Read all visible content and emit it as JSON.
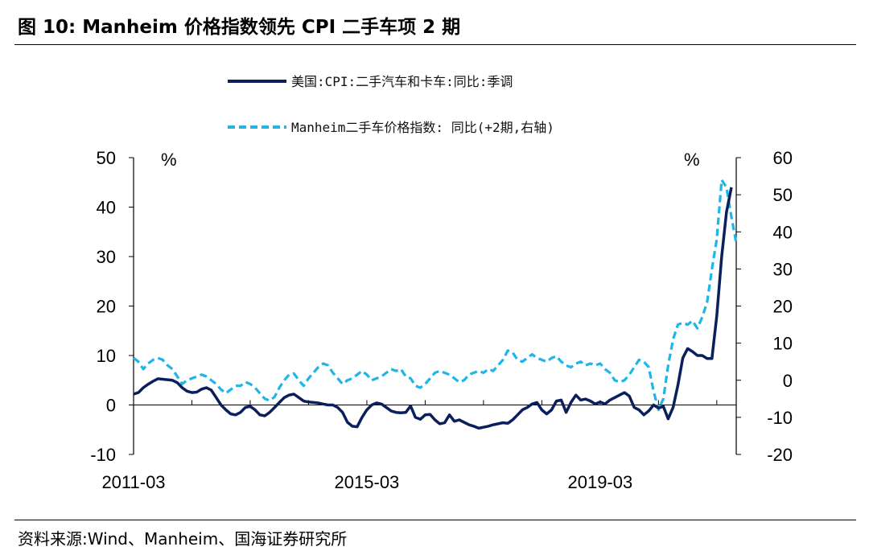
{
  "header": {
    "title": "图 10:  Manheim 价格指数领先 CPI 二手车项 2 期"
  },
  "footer": {
    "source": "资料来源:Wind、Manheim、国海证券研究所"
  },
  "chart_data": {
    "type": "line",
    "legend": [
      "美国:CPI:二手汽车和卡车:同比:季调",
      "Manheim二手车价格指数: 同比(+2期,右轴)"
    ],
    "left_unit": "%",
    "right_unit": "%",
    "left_axis": {
      "min": -10,
      "max": 50,
      "ticks": [
        -10,
        0,
        10,
        20,
        30,
        40,
        50
      ]
    },
    "right_axis": {
      "min": -20,
      "max": 60,
      "ticks": [
        -20,
        -10,
        0,
        10,
        20,
        30,
        40,
        50,
        60
      ]
    },
    "x_range": [
      "2011-03",
      "2021-07"
    ],
    "x_tick_labels": [
      "2011-03",
      "2015-03",
      "2019-03"
    ],
    "colors": {
      "cpi": "#0b1f5c",
      "manheim": "#1fb5e8",
      "axis": "#000000"
    },
    "series": [
      {
        "name": "美国:CPI:二手汽车和卡车:同比:季调",
        "axis": "left",
        "style": "solid",
        "points": [
          [
            "2011-03",
            2.2
          ],
          [
            "2011-04",
            2.5
          ],
          [
            "2011-05",
            3.5
          ],
          [
            "2011-06",
            4.2
          ],
          [
            "2011-07",
            4.8
          ],
          [
            "2011-08",
            5.3
          ],
          [
            "2011-09",
            5.2
          ],
          [
            "2011-10",
            5.1
          ],
          [
            "2011-11",
            5.0
          ],
          [
            "2011-12",
            4.5
          ],
          [
            "2012-01",
            3.5
          ],
          [
            "2012-02",
            2.8
          ],
          [
            "2012-03",
            2.5
          ],
          [
            "2012-04",
            2.6
          ],
          [
            "2012-05",
            3.2
          ],
          [
            "2012-06",
            3.5
          ],
          [
            "2012-07",
            3.0
          ],
          [
            "2012-08",
            1.5
          ],
          [
            "2012-09",
            0.0
          ],
          [
            "2012-10",
            -1.0
          ],
          [
            "2012-11",
            -1.8
          ],
          [
            "2012-12",
            -2.0
          ],
          [
            "2013-01",
            -1.5
          ],
          [
            "2013-02",
            -0.5
          ],
          [
            "2013-03",
            -0.3
          ],
          [
            "2013-04",
            -1.0
          ],
          [
            "2013-05",
            -2.0
          ],
          [
            "2013-06",
            -2.2
          ],
          [
            "2013-07",
            -1.5
          ],
          [
            "2013-08",
            -0.5
          ],
          [
            "2013-09",
            0.5
          ],
          [
            "2013-10",
            1.5
          ],
          [
            "2013-11",
            2.0
          ],
          [
            "2013-12",
            2.2
          ],
          [
            "2014-01",
            1.5
          ],
          [
            "2014-02",
            0.8
          ],
          [
            "2014-03",
            0.6
          ],
          [
            "2014-04",
            0.5
          ],
          [
            "2014-05",
            0.4
          ],
          [
            "2014-06",
            0.2
          ],
          [
            "2014-07",
            0.0
          ],
          [
            "2014-08",
            0.0
          ],
          [
            "2014-09",
            -0.5
          ],
          [
            "2014-10",
            -1.5
          ],
          [
            "2014-11",
            -3.5
          ],
          [
            "2014-12",
            -4.3
          ],
          [
            "2015-01",
            -4.4
          ],
          [
            "2015-02",
            -2.5
          ],
          [
            "2015-03",
            -1.0
          ],
          [
            "2015-04",
            0.0
          ],
          [
            "2015-05",
            0.4
          ],
          [
            "2015-06",
            0.2
          ],
          [
            "2015-07",
            -0.5
          ],
          [
            "2015-08",
            -1.2
          ],
          [
            "2015-09",
            -1.5
          ],
          [
            "2015-10",
            -1.6
          ],
          [
            "2015-11",
            -1.5
          ],
          [
            "2015-12",
            -0.2
          ],
          [
            "2016-01",
            -2.5
          ],
          [
            "2016-02",
            -2.9
          ],
          [
            "2016-03",
            -2.0
          ],
          [
            "2016-04",
            -1.9
          ],
          [
            "2016-05",
            -3.0
          ],
          [
            "2016-06",
            -3.8
          ],
          [
            "2016-07",
            -3.6
          ],
          [
            "2016-08",
            -2.0
          ],
          [
            "2016-09",
            -3.3
          ],
          [
            "2016-10",
            -3.0
          ],
          [
            "2016-11",
            -3.5
          ],
          [
            "2016-12",
            -4.0
          ],
          [
            "2017-01",
            -4.3
          ],
          [
            "2017-02",
            -4.7
          ],
          [
            "2017-03",
            -4.5
          ],
          [
            "2017-04",
            -4.3
          ],
          [
            "2017-05",
            -4.0
          ],
          [
            "2017-06",
            -3.8
          ],
          [
            "2017-07",
            -3.6
          ],
          [
            "2017-08",
            -3.7
          ],
          [
            "2017-09",
            -3.0
          ],
          [
            "2017-10",
            -2.0
          ],
          [
            "2017-11",
            -1.0
          ],
          [
            "2017-12",
            -0.5
          ],
          [
            "2018-01",
            0.2
          ],
          [
            "2018-02",
            0.5
          ],
          [
            "2018-03",
            -1.0
          ],
          [
            "2018-04",
            -1.8
          ],
          [
            "2018-05",
            -1.0
          ],
          [
            "2018-06",
            0.8
          ],
          [
            "2018-07",
            1.0
          ],
          [
            "2018-08",
            -1.5
          ],
          [
            "2018-09",
            0.5
          ],
          [
            "2018-10",
            2.0
          ],
          [
            "2018-11",
            1.0
          ],
          [
            "2018-12",
            1.2
          ],
          [
            "2019-01",
            0.8
          ],
          [
            "2019-02",
            0.2
          ],
          [
            "2019-03",
            0.6
          ],
          [
            "2019-04",
            0.2
          ],
          [
            "2019-05",
            1.0
          ],
          [
            "2019-06",
            1.5
          ],
          [
            "2019-07",
            2.0
          ],
          [
            "2019-08",
            2.5
          ],
          [
            "2019-09",
            1.8
          ],
          [
            "2019-10",
            -0.5
          ],
          [
            "2019-11",
            -1.0
          ],
          [
            "2019-12",
            -2.0
          ],
          [
            "2020-01",
            -1.2
          ],
          [
            "2020-02",
            0.0
          ],
          [
            "2020-03",
            -0.6
          ],
          [
            "2020-04",
            -0.3
          ],
          [
            "2020-05",
            -2.8
          ],
          [
            "2020-06",
            -0.5
          ],
          [
            "2020-07",
            4.0
          ],
          [
            "2020-08",
            9.5
          ],
          [
            "2020-09",
            11.4
          ],
          [
            "2020-10",
            10.8
          ],
          [
            "2020-11",
            10.0
          ],
          [
            "2020-12",
            10.0
          ],
          [
            "2021-01",
            9.4
          ],
          [
            "2021-02",
            9.4
          ],
          [
            "2021-03",
            18.0
          ],
          [
            "2021-04",
            30.0
          ],
          [
            "2021-05",
            39.0
          ],
          [
            "2021-06",
            44.0
          ]
        ]
      },
      {
        "name": "Manheim二手车价格指数: 同比(+2期,右轴)",
        "axis": "right",
        "style": "dashed",
        "points": [
          [
            "2011-03",
            6.0
          ],
          [
            "2011-04",
            5.0
          ],
          [
            "2011-05",
            3.0
          ],
          [
            "2011-06",
            4.5
          ],
          [
            "2011-07",
            5.5
          ],
          [
            "2011-08",
            6.0
          ],
          [
            "2011-09",
            5.5
          ],
          [
            "2011-10",
            4.0
          ],
          [
            "2011-11",
            3.0
          ],
          [
            "2011-12",
            1.0
          ],
          [
            "2012-01",
            -1.0
          ],
          [
            "2012-02",
            0.0
          ],
          [
            "2012-03",
            0.5
          ],
          [
            "2012-04",
            1.0
          ],
          [
            "2012-05",
            1.5
          ],
          [
            "2012-06",
            1.0
          ],
          [
            "2012-07",
            0.0
          ],
          [
            "2012-08",
            -1.0
          ],
          [
            "2012-09",
            -2.5
          ],
          [
            "2012-10",
            -3.5
          ],
          [
            "2012-11",
            -2.5
          ],
          [
            "2012-12",
            -1.5
          ],
          [
            "2013-01",
            -1.5
          ],
          [
            "2013-02",
            -0.5
          ],
          [
            "2013-03",
            -1.0
          ],
          [
            "2013-04",
            -2.0
          ],
          [
            "2013-05",
            -3.5
          ],
          [
            "2013-06",
            -5.0
          ],
          [
            "2013-07",
            -5.5
          ],
          [
            "2013-08",
            -4.5
          ],
          [
            "2013-09",
            -2.0
          ],
          [
            "2013-10",
            0.0
          ],
          [
            "2013-11",
            1.5
          ],
          [
            "2013-12",
            1.8
          ],
          [
            "2014-01",
            0.0
          ],
          [
            "2014-02",
            -1.5
          ],
          [
            "2014-03",
            0.5
          ],
          [
            "2014-04",
            2.0
          ],
          [
            "2014-05",
            3.5
          ],
          [
            "2014-06",
            4.5
          ],
          [
            "2014-07",
            4.0
          ],
          [
            "2014-08",
            2.0
          ],
          [
            "2014-09",
            0.5
          ],
          [
            "2014-10",
            -1.0
          ],
          [
            "2014-11",
            0.0
          ],
          [
            "2014-12",
            0.5
          ],
          [
            "2015-01",
            1.5
          ],
          [
            "2015-02",
            2.5
          ],
          [
            "2015-03",
            1.5
          ],
          [
            "2015-04",
            0.0
          ],
          [
            "2015-05",
            0.5
          ],
          [
            "2015-06",
            1.0
          ],
          [
            "2015-07",
            2.0
          ],
          [
            "2015-08",
            3.0
          ],
          [
            "2015-09",
            2.5
          ],
          [
            "2015-10",
            3.0
          ],
          [
            "2015-11",
            1.0
          ],
          [
            "2015-12",
            0.5
          ],
          [
            "2016-01",
            -1.5
          ],
          [
            "2016-02",
            -2.0
          ],
          [
            "2016-03",
            -1.0
          ],
          [
            "2016-04",
            0.5
          ],
          [
            "2016-05",
            2.0
          ],
          [
            "2016-06",
            2.5
          ],
          [
            "2016-07",
            2.0
          ],
          [
            "2016-08",
            1.5
          ],
          [
            "2016-09",
            0.5
          ],
          [
            "2016-10",
            -0.5
          ],
          [
            "2016-11",
            0.0
          ],
          [
            "2016-12",
            1.5
          ],
          [
            "2017-01",
            2.0
          ],
          [
            "2017-02",
            2.5
          ],
          [
            "2017-03",
            2.0
          ],
          [
            "2017-04",
            3.0
          ],
          [
            "2017-05",
            2.5
          ],
          [
            "2017-06",
            4.0
          ],
          [
            "2017-07",
            5.5
          ],
          [
            "2017-08",
            8.0
          ],
          [
            "2017-09",
            7.5
          ],
          [
            "2017-10",
            5.5
          ],
          [
            "2017-11",
            5.0
          ],
          [
            "2017-12",
            6.0
          ],
          [
            "2018-01",
            7.0
          ],
          [
            "2018-02",
            6.0
          ],
          [
            "2018-03",
            5.5
          ],
          [
            "2018-04",
            5.0
          ],
          [
            "2018-05",
            6.0
          ],
          [
            "2018-06",
            6.5
          ],
          [
            "2018-07",
            5.0
          ],
          [
            "2018-08",
            4.0
          ],
          [
            "2018-09",
            3.5
          ],
          [
            "2018-10",
            4.5
          ],
          [
            "2018-11",
            5.0
          ],
          [
            "2018-12",
            4.0
          ],
          [
            "2019-01",
            4.5
          ],
          [
            "2019-02",
            4.0
          ],
          [
            "2019-03",
            4.5
          ],
          [
            "2019-04",
            3.0
          ],
          [
            "2019-05",
            2.0
          ],
          [
            "2019-06",
            0.0
          ],
          [
            "2019-07",
            -0.5
          ],
          [
            "2019-08",
            0.0
          ],
          [
            "2019-09",
            1.5
          ],
          [
            "2019-10",
            3.5
          ],
          [
            "2019-11",
            5.5
          ],
          [
            "2019-12",
            5.0
          ],
          [
            "2020-01",
            3.5
          ],
          [
            "2020-02",
            -3.0
          ],
          [
            "2020-03",
            -8.0
          ],
          [
            "2020-04",
            -5.0
          ],
          [
            "2020-05",
            4.0
          ],
          [
            "2020-06",
            11.0
          ],
          [
            "2020-07",
            15.0
          ],
          [
            "2020-08",
            15.5
          ],
          [
            "2020-09",
            15.0
          ],
          [
            "2020-10",
            16.0
          ],
          [
            "2020-11",
            14.0
          ],
          [
            "2020-12",
            17.0
          ],
          [
            "2021-01",
            21.0
          ],
          [
            "2021-02",
            30.0
          ],
          [
            "2021-03",
            38.0
          ],
          [
            "2021-04",
            54.0
          ],
          [
            "2021-05",
            52.0
          ],
          [
            "2021-06",
            44.0
          ],
          [
            "2021-07",
            37.0
          ]
        ]
      }
    ]
  }
}
